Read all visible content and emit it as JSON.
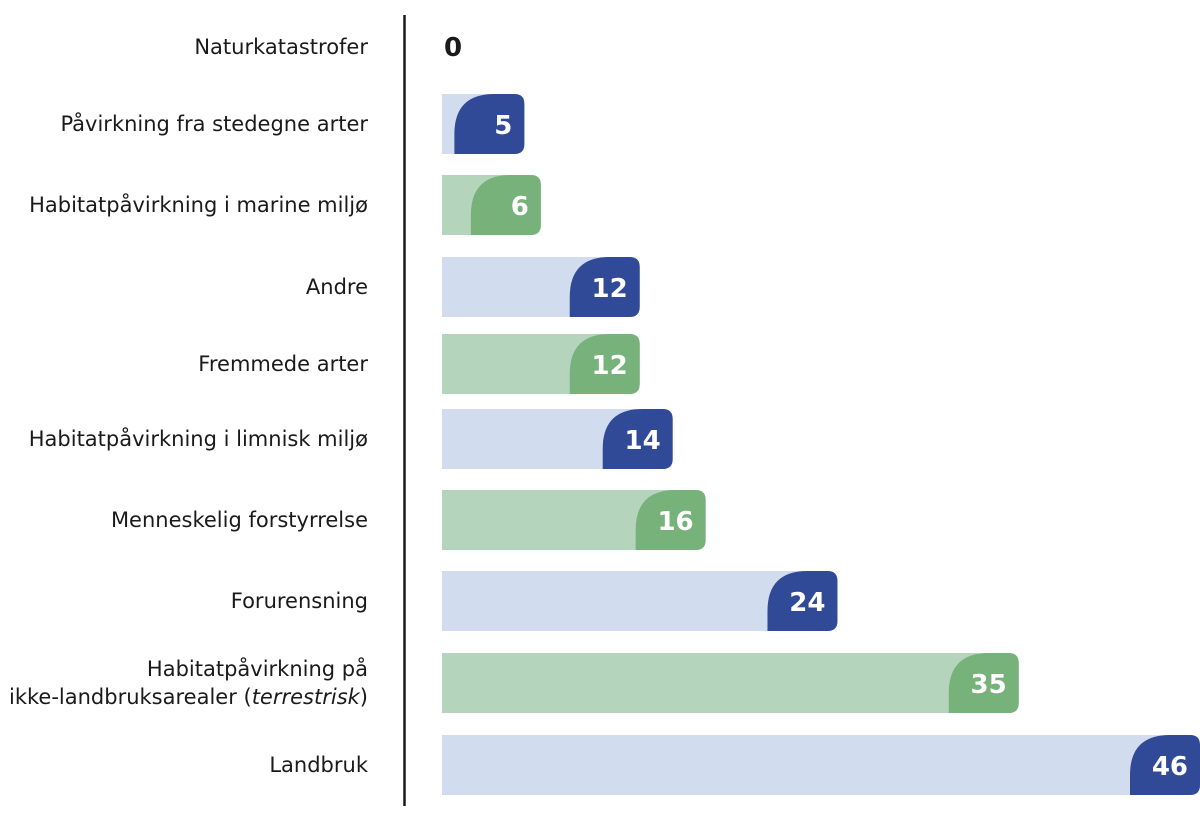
{
  "chart_data": {
    "type": "bar",
    "orientation": "horizontal",
    "title": "",
    "xlabel": "",
    "ylabel": "",
    "xlim": [
      0,
      46
    ],
    "grid": false,
    "legend": "none",
    "categories": [
      "Naturkatastrofer",
      "Påvirkning fra stedegne arter",
      "Habitatpåvirkning i marine miljø",
      "Andre",
      "Fremmede arter",
      "Habitatpåvirkning i limnisk miljø",
      "Menneskelig forstyrrelse",
      "Forurensning",
      "Habitatpåvirkning på\nikke-landbruksarealer (terrestrisk)",
      "Landbruk"
    ],
    "category_label_lines": [
      [
        {
          "text": "Naturkatastrofer"
        }
      ],
      [
        {
          "text": "Påvirkning fra stedegne arter"
        }
      ],
      [
        {
          "text": "Habitatpåvirkning i marine miljø"
        }
      ],
      [
        {
          "text": "Andre"
        }
      ],
      [
        {
          "text": "Fremmede arter"
        }
      ],
      [
        {
          "text": "Habitatpåvirkning i limnisk miljø"
        }
      ],
      [
        {
          "text": "Menneskelig forstyrrelse"
        }
      ],
      [
        {
          "text": "Forurensning"
        }
      ],
      [
        {
          "text": "Habitatpåvirkning på"
        },
        {
          "text": "ikke-landbruksarealer (",
          "italic": "terrestrisk",
          "after": ")"
        }
      ],
      [
        {
          "text": "Landbruk"
        }
      ]
    ],
    "values": [
      0,
      5,
      6,
      12,
      12,
      14,
      16,
      24,
      35,
      46
    ],
    "value_labels": [
      "0",
      "5",
      "6",
      "12",
      "12",
      "14",
      "16",
      "24",
      "35",
      "46"
    ],
    "bar_colors": [
      "blue",
      "blue",
      "green",
      "blue",
      "green",
      "blue",
      "green",
      "blue",
      "green",
      "blue"
    ],
    "palette": {
      "blue": {
        "light": "#d1ddee",
        "dark": "#314a97"
      },
      "green": {
        "light": "#b4d4bc",
        "dark": "#78b27b"
      },
      "axis": "#1a1a1a",
      "text": "#1a1a1a"
    }
  }
}
